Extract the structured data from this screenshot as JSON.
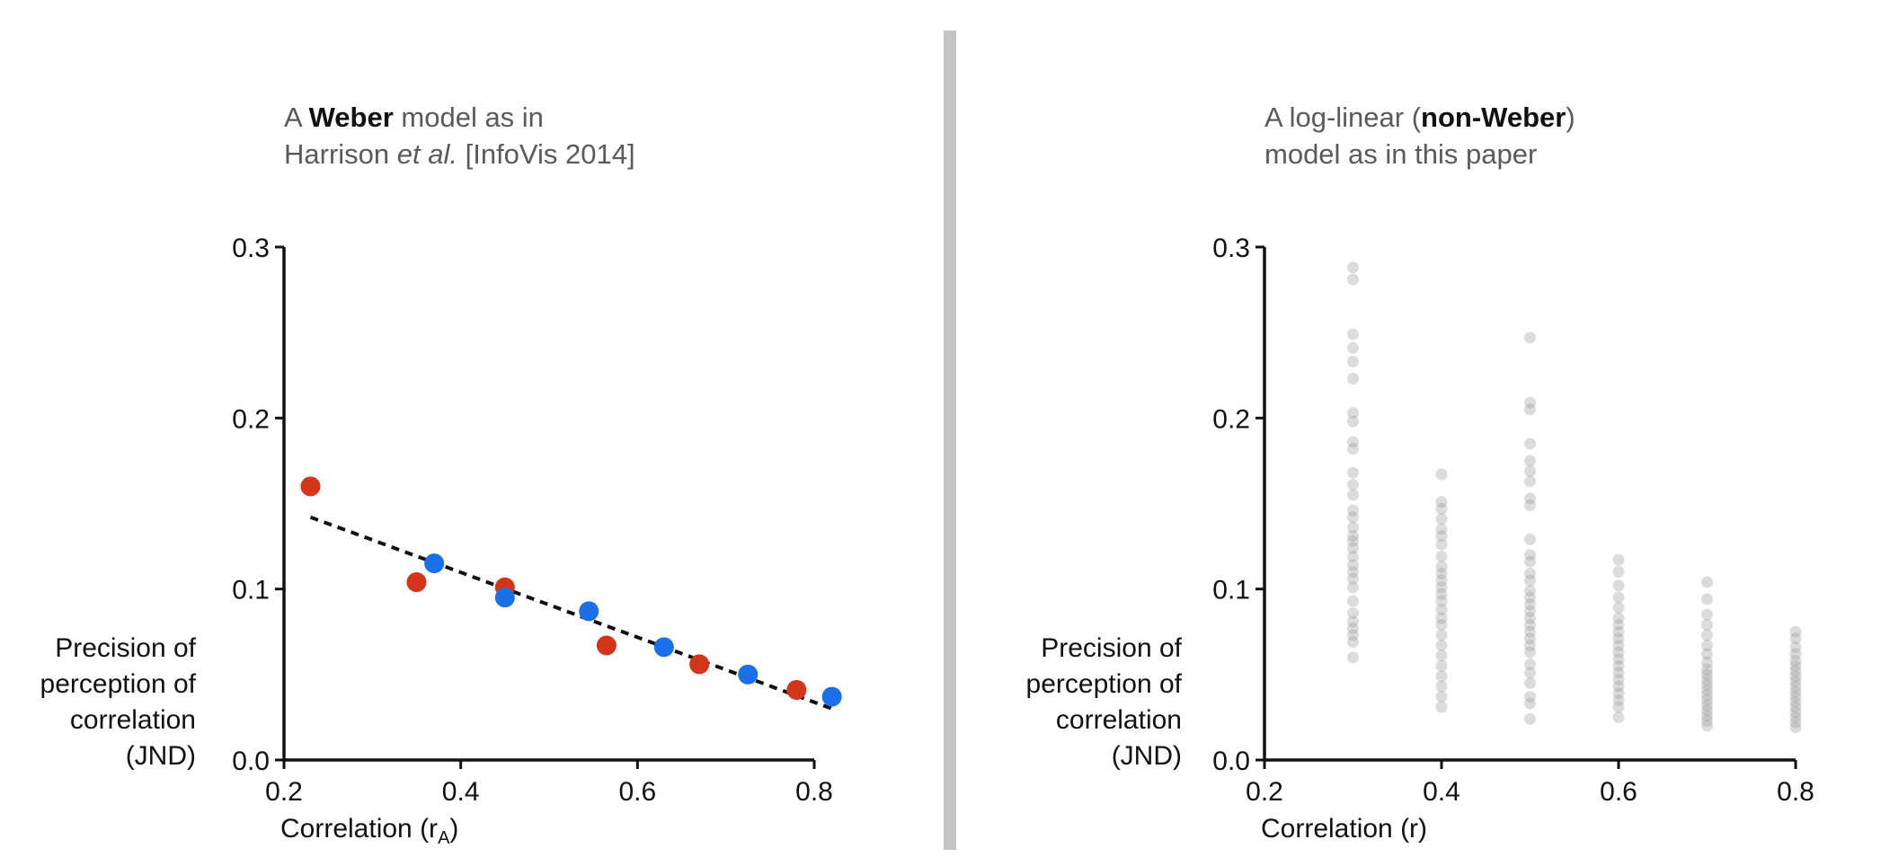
{
  "panels": {
    "left": {
      "title_lead": "A ",
      "title_bold": "Weber",
      "title_mid": " model as in",
      "title_line2_pre": "Harrison ",
      "title_line2_ital": "et al.",
      "title_line2_post": " [InfoVis 2014]",
      "ylabel_lines": [
        "Precision of",
        "perception of",
        "correlation",
        "(JND)"
      ],
      "xlabel_main": "Correlation (r",
      "xlabel_sub": "A",
      "xlabel_end": ")"
    },
    "right": {
      "title_lead": "A log-linear (",
      "title_bold": "non-Weber",
      "title_mid": ")",
      "title_line2": "model as in this paper",
      "ylabel_lines": [
        "Precision of",
        "perception of",
        "correlation",
        "(JND)"
      ],
      "xlabel": "Correlation (r)"
    }
  },
  "colors": {
    "red": "#d4341a",
    "blue": "#1a70e8",
    "gray": "#9a9a9a",
    "axis": "#111111",
    "divider": "#c4c4c4"
  },
  "chart_data": [
    {
      "type": "scatter",
      "xlim": [
        0.2,
        0.8
      ],
      "ylim": [
        0.0,
        0.3
      ],
      "xticks": [
        "0.2",
        "0.4",
        "0.6",
        "0.8"
      ],
      "yticks": [
        "0.0",
        "0.1",
        "0.2",
        "0.3"
      ],
      "series": [
        {
          "color": "red",
          "x": [
            0.23,
            0.35,
            0.45,
            0.565,
            0.67,
            0.78
          ],
          "y": [
            0.16,
            0.104,
            0.101,
            0.067,
            0.056,
            0.041
          ]
        },
        {
          "color": "blue",
          "x": [
            0.37,
            0.45,
            0.545,
            0.63,
            0.725,
            0.82
          ],
          "y": [
            0.115,
            0.095,
            0.087,
            0.066,
            0.05,
            0.037
          ]
        }
      ],
      "fit_line": {
        "style": "dashed",
        "x": [
          0.23,
          0.82
        ],
        "y": [
          0.142,
          0.03
        ]
      }
    },
    {
      "type": "scatter",
      "xlim": [
        0.2,
        0.8
      ],
      "ylim": [
        0.0,
        0.3
      ],
      "xticks": [
        "0.2",
        "0.4",
        "0.6",
        "0.8"
      ],
      "yticks": [
        "0.0",
        "0.1",
        "0.2",
        "0.3"
      ],
      "series": [
        {
          "color": "gray",
          "x": 0.3,
          "y": [
            0.288,
            0.281,
            0.249,
            0.241,
            0.233,
            0.223,
            0.203,
            0.198,
            0.186,
            0.182,
            0.168,
            0.161,
            0.155,
            0.146,
            0.142,
            0.136,
            0.131,
            0.128,
            0.124,
            0.119,
            0.114,
            0.11,
            0.106,
            0.101,
            0.093,
            0.086,
            0.081,
            0.077,
            0.073,
            0.069,
            0.06
          ]
        },
        {
          "color": "gray",
          "x": 0.4,
          "y": [
            0.167,
            0.151,
            0.147,
            0.141,
            0.135,
            0.131,
            0.126,
            0.119,
            0.113,
            0.109,
            0.105,
            0.101,
            0.097,
            0.093,
            0.088,
            0.083,
            0.079,
            0.073,
            0.067,
            0.061,
            0.055,
            0.049,
            0.043,
            0.037,
            0.031
          ]
        },
        {
          "color": "gray",
          "x": 0.5,
          "y": [
            0.247,
            0.209,
            0.205,
            0.185,
            0.175,
            0.169,
            0.163,
            0.153,
            0.149,
            0.129,
            0.12,
            0.116,
            0.109,
            0.105,
            0.099,
            0.095,
            0.091,
            0.087,
            0.083,
            0.079,
            0.075,
            0.071,
            0.067,
            0.063,
            0.056,
            0.051,
            0.045,
            0.037,
            0.033,
            0.024
          ]
        },
        {
          "color": "gray",
          "x": 0.6,
          "y": [
            0.117,
            0.11,
            0.102,
            0.095,
            0.089,
            0.083,
            0.079,
            0.075,
            0.071,
            0.067,
            0.063,
            0.059,
            0.055,
            0.051,
            0.047,
            0.043,
            0.039,
            0.035,
            0.031,
            0.025
          ]
        },
        {
          "color": "gray",
          "x": 0.7,
          "y": [
            0.104,
            0.094,
            0.085,
            0.079,
            0.073,
            0.067,
            0.062,
            0.057,
            0.053,
            0.05,
            0.047,
            0.044,
            0.041,
            0.038,
            0.035,
            0.032,
            0.029,
            0.026,
            0.023,
            0.02
          ]
        },
        {
          "color": "gray",
          "x": 0.8,
          "y": [
            0.075,
            0.071,
            0.066,
            0.062,
            0.058,
            0.055,
            0.052,
            0.049,
            0.046,
            0.043,
            0.04,
            0.037,
            0.034,
            0.031,
            0.028,
            0.025,
            0.022,
            0.019
          ]
        }
      ]
    }
  ]
}
